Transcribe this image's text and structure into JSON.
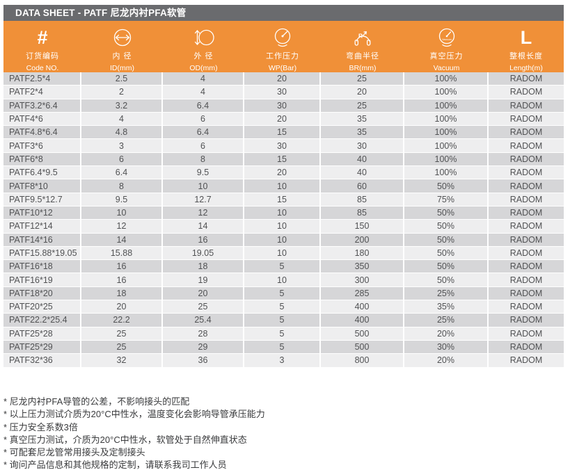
{
  "title": "DATA SHEET - PATF 尼龙内衬PFA软管",
  "colors": {
    "accent_orange": "#f09038",
    "titlebar_gray": "#6a6b6e",
    "row_dark": "#d6d6d8",
    "row_light": "#eeeeef"
  },
  "table": {
    "columns": [
      {
        "zh": "订货编码",
        "en": "Code NO.",
        "icon": "hash-icon",
        "icon_glyph": "#"
      },
      {
        "zh": "内 径",
        "en": "ID(mm)",
        "icon": "inner-diameter-icon"
      },
      {
        "zh": "外 径",
        "en": "OD(mm)",
        "icon": "outer-diameter-icon"
      },
      {
        "zh": "工作压力",
        "en": "WP(Bar)",
        "icon": "pressure-gauge-icon"
      },
      {
        "zh": "弯曲半径",
        "en": "BR(mm)",
        "icon": "bend-radius-icon",
        "icon_label": "R"
      },
      {
        "zh": "真空压力",
        "en": "Vacuum",
        "icon": "vacuum-gauge-icon",
        "icon_label": "Vacuum"
      },
      {
        "zh": "整根长度",
        "en": "Length(m)",
        "icon": "length-icon",
        "icon_glyph": "L"
      }
    ],
    "rows": [
      [
        "PATF2.5*4",
        "2.5",
        "4",
        "20",
        "25",
        "100%",
        "RADOM"
      ],
      [
        "PATF2*4",
        "2",
        "4",
        "30",
        "20",
        "100%",
        "RADOM"
      ],
      [
        "PATF3.2*6.4",
        "3.2",
        "6.4",
        "30",
        "25",
        "100%",
        "RADOM"
      ],
      [
        "PATF4*6",
        "4",
        "6",
        "20",
        "35",
        "100%",
        "RADOM"
      ],
      [
        "PATF4.8*6.4",
        "4.8",
        "6.4",
        "15",
        "35",
        "100%",
        "RADOM"
      ],
      [
        "PATF3*6",
        "3",
        "6",
        "30",
        "30",
        "100%",
        "RADOM"
      ],
      [
        "PATF6*8",
        "6",
        "8",
        "15",
        "40",
        "100%",
        "RADOM"
      ],
      [
        "PATF6.4*9.5",
        "6.4",
        "9.5",
        "20",
        "40",
        "100%",
        "RADOM"
      ],
      [
        "PATF8*10",
        "8",
        "10",
        "10",
        "60",
        "50%",
        "RADOM"
      ],
      [
        "PATF9.5*12.7",
        "9.5",
        "12.7",
        "15",
        "85",
        "75%",
        "RADOM"
      ],
      [
        "PATF10*12",
        "10",
        "12",
        "10",
        "85",
        "50%",
        "RADOM"
      ],
      [
        "PATF12*14",
        "12",
        "14",
        "10",
        "150",
        "50%",
        "RADOM"
      ],
      [
        "PATF14*16",
        "14",
        "16",
        "10",
        "200",
        "50%",
        "RADOM"
      ],
      [
        "PATF15.88*19.05",
        "15.88",
        "19.05",
        "10",
        "180",
        "50%",
        "RADOM"
      ],
      [
        "PATF16*18",
        "16",
        "18",
        "5",
        "350",
        "50%",
        "RADOM"
      ],
      [
        "PATF16*19",
        "16",
        "19",
        "10",
        "300",
        "50%",
        "RADOM"
      ],
      [
        "PATF18*20",
        "18",
        "20",
        "5",
        "285",
        "25%",
        "RADOM"
      ],
      [
        "PATF20*25",
        "20",
        "25",
        "5",
        "400",
        "35%",
        "RADOM"
      ],
      [
        "PATF22.2*25.4",
        "22.2",
        "25.4",
        "5",
        "400",
        "25%",
        "RADOM"
      ],
      [
        "PATF25*28",
        "25",
        "28",
        "5",
        "500",
        "20%",
        "RADOM"
      ],
      [
        "PATF25*29",
        "25",
        "29",
        "5",
        "500",
        "30%",
        "RADOM"
      ],
      [
        "PATF32*36",
        "32",
        "36",
        "3",
        "800",
        "20%",
        "RADOM"
      ]
    ]
  },
  "footnotes": [
    "* 尼龙内衬PFA导管的公差，不影响接头的匹配",
    "* 以上压力测试介质为20°C中性水，温度变化会影响导管承压能力",
    "* 压力安全系数3倍",
    "* 真空压力测试，介质为20°C中性水，软管处于自然伸直状态",
    "* 可配套尼龙管常用接头及定制接头",
    "* 询问产品信息和其他规格的定制，请联系我司工作人员"
  ]
}
